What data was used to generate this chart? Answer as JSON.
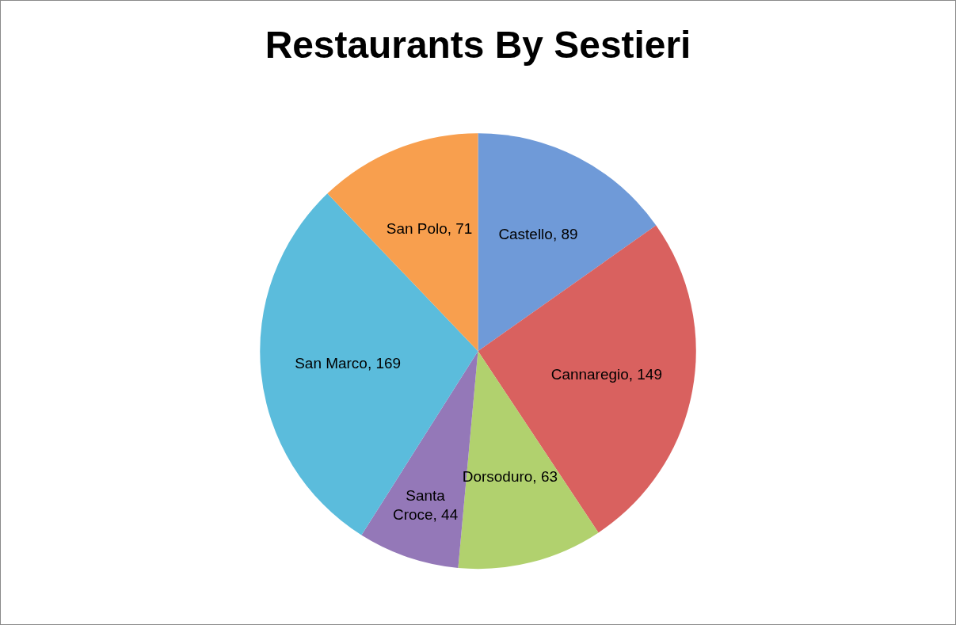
{
  "chart_data": {
    "type": "pie",
    "title": "Restaurants By Sestieri",
    "categories": [
      "Castello",
      "Cannaregio",
      "Dorsoduro",
      "Santa Croce",
      "San Marco",
      "San Polo"
    ],
    "values": [
      89,
      149,
      63,
      44,
      169,
      71
    ],
    "colors": [
      "#6f9ad8",
      "#d9615f",
      "#b1d16e",
      "#9478b8",
      "#5bbcdc",
      "#f89f4e"
    ],
    "value_labels": [
      ", 89",
      ", 149",
      ", 63",
      ", 44",
      ", 169",
      ", 71"
    ]
  }
}
